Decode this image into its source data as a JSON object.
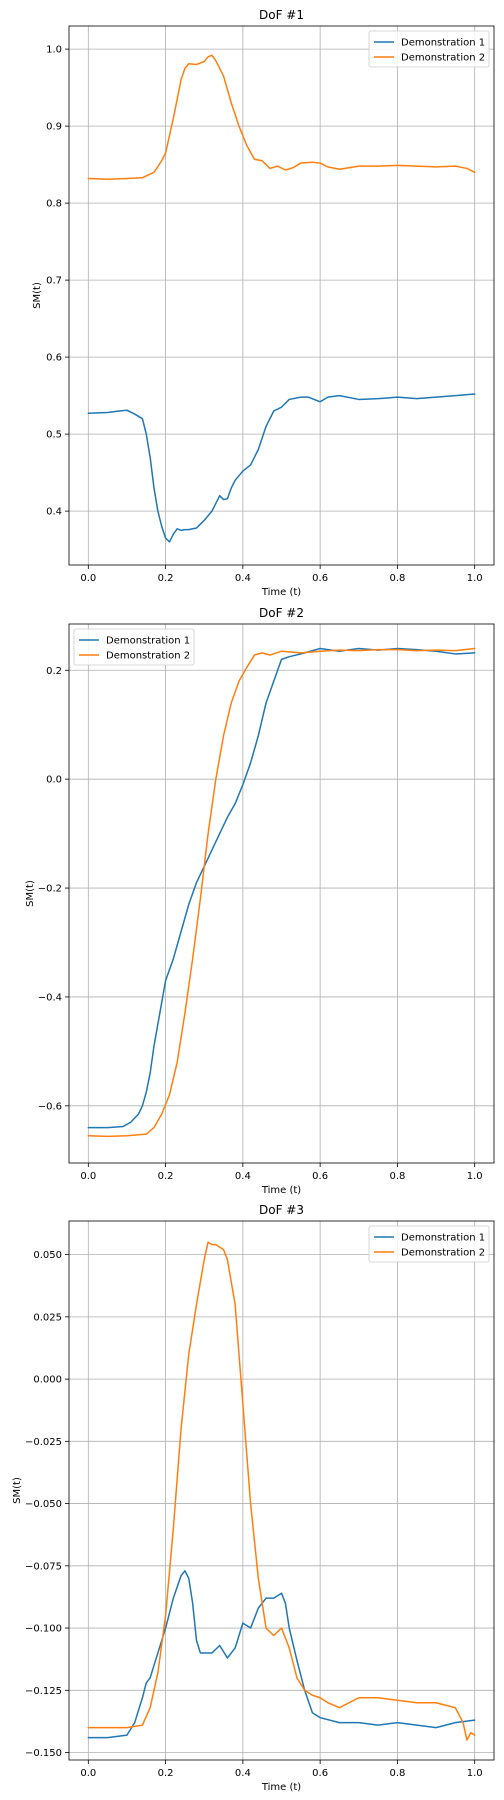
{
  "chart_data": [
    {
      "type": "line",
      "title": "DoF #1",
      "xlabel": "Time (t)",
      "ylabel": "SM(t)",
      "xlim": [
        -0.05,
        1.05
      ],
      "ylim": [
        0.33,
        1.03
      ],
      "xticks": [
        0.0,
        0.2,
        0.4,
        0.6,
        0.8,
        1.0
      ],
      "xtick_labels": [
        "0.0",
        "0.2",
        "0.4",
        "0.6",
        "0.8",
        "1.0"
      ],
      "yticks": [
        0.4,
        0.5,
        0.6,
        0.7,
        0.8,
        0.9,
        1.0
      ],
      "ytick_labels": [
        "0.4",
        "0.5",
        "0.6",
        "0.7",
        "0.8",
        "0.9",
        "1.0"
      ],
      "grid": true,
      "legend_position": "upper-right",
      "series": [
        {
          "name": "Demonstration 1",
          "color": "#1f77b4",
          "x": [
            0.0,
            0.05,
            0.08,
            0.1,
            0.12,
            0.14,
            0.15,
            0.16,
            0.17,
            0.18,
            0.19,
            0.2,
            0.21,
            0.22,
            0.23,
            0.24,
            0.25,
            0.26,
            0.28,
            0.3,
            0.32,
            0.33,
            0.34,
            0.35,
            0.36,
            0.37,
            0.38,
            0.4,
            0.42,
            0.44,
            0.46,
            0.48,
            0.5,
            0.52,
            0.55,
            0.57,
            0.6,
            0.62,
            0.65,
            0.7,
            0.75,
            0.8,
            0.85,
            0.9,
            0.95,
            1.0
          ],
          "y": [
            0.527,
            0.528,
            0.53,
            0.531,
            0.526,
            0.52,
            0.5,
            0.47,
            0.43,
            0.4,
            0.38,
            0.365,
            0.36,
            0.37,
            0.377,
            0.375,
            0.376,
            0.376,
            0.378,
            0.388,
            0.4,
            0.41,
            0.42,
            0.415,
            0.416,
            0.43,
            0.44,
            0.452,
            0.46,
            0.48,
            0.51,
            0.53,
            0.535,
            0.545,
            0.548,
            0.548,
            0.542,
            0.548,
            0.55,
            0.545,
            0.546,
            0.548,
            0.546,
            0.548,
            0.55,
            0.552
          ]
        },
        {
          "name": "Demonstration 2",
          "color": "#ff7f0e",
          "x": [
            0.0,
            0.05,
            0.1,
            0.14,
            0.17,
            0.19,
            0.2,
            0.22,
            0.24,
            0.25,
            0.26,
            0.28,
            0.3,
            0.31,
            0.32,
            0.33,
            0.35,
            0.37,
            0.39,
            0.41,
            0.43,
            0.45,
            0.47,
            0.49,
            0.51,
            0.53,
            0.55,
            0.58,
            0.6,
            0.62,
            0.65,
            0.7,
            0.75,
            0.8,
            0.85,
            0.9,
            0.95,
            0.98,
            1.0
          ],
          "y": [
            0.832,
            0.831,
            0.832,
            0.833,
            0.84,
            0.855,
            0.865,
            0.91,
            0.96,
            0.975,
            0.981,
            0.98,
            0.984,
            0.99,
            0.992,
            0.985,
            0.965,
            0.93,
            0.9,
            0.875,
            0.857,
            0.855,
            0.845,
            0.848,
            0.843,
            0.846,
            0.852,
            0.853,
            0.852,
            0.847,
            0.844,
            0.848,
            0.848,
            0.849,
            0.848,
            0.847,
            0.848,
            0.845,
            0.84
          ]
        }
      ]
    },
    {
      "type": "line",
      "title": "DoF #2",
      "xlabel": "Time (t)",
      "ylabel": "SM(t)",
      "xlim": [
        -0.05,
        1.05
      ],
      "ylim": [
        -0.705,
        0.285
      ],
      "xticks": [
        0.0,
        0.2,
        0.4,
        0.6,
        0.8,
        1.0
      ],
      "xtick_labels": [
        "0.0",
        "0.2",
        "0.4",
        "0.6",
        "0.8",
        "1.0"
      ],
      "yticks": [
        -0.6,
        -0.4,
        -0.2,
        0.0,
        0.2
      ],
      "ytick_labels": [
        "−0.6",
        "−0.4",
        "−0.2",
        "0.0",
        "0.2"
      ],
      "grid": true,
      "legend_position": "upper-left",
      "series": [
        {
          "name": "Demonstration 1",
          "color": "#1f77b4",
          "x": [
            0.0,
            0.05,
            0.09,
            0.11,
            0.13,
            0.14,
            0.15,
            0.16,
            0.17,
            0.18,
            0.19,
            0.2,
            0.22,
            0.24,
            0.26,
            0.28,
            0.3,
            0.32,
            0.34,
            0.36,
            0.38,
            0.4,
            0.42,
            0.44,
            0.46,
            0.48,
            0.5,
            0.52,
            0.55,
            0.6,
            0.65,
            0.7,
            0.75,
            0.8,
            0.85,
            0.9,
            0.95,
            1.0
          ],
          "y": [
            -0.64,
            -0.64,
            -0.638,
            -0.63,
            -0.615,
            -0.6,
            -0.575,
            -0.54,
            -0.49,
            -0.45,
            -0.41,
            -0.37,
            -0.33,
            -0.28,
            -0.23,
            -0.19,
            -0.16,
            -0.13,
            -0.1,
            -0.07,
            -0.045,
            -0.01,
            0.03,
            0.08,
            0.14,
            0.18,
            0.22,
            0.225,
            0.23,
            0.24,
            0.235,
            0.24,
            0.237,
            0.24,
            0.238,
            0.235,
            0.23,
            0.232
          ]
        },
        {
          "name": "Demonstration 2",
          "color": "#ff7f0e",
          "x": [
            0.0,
            0.05,
            0.1,
            0.15,
            0.17,
            0.19,
            0.21,
            0.23,
            0.25,
            0.27,
            0.29,
            0.31,
            0.33,
            0.35,
            0.37,
            0.39,
            0.41,
            0.43,
            0.45,
            0.47,
            0.5,
            0.55,
            0.6,
            0.65,
            0.7,
            0.75,
            0.8,
            0.85,
            0.9,
            0.95,
            1.0
          ],
          "y": [
            -0.655,
            -0.656,
            -0.655,
            -0.652,
            -0.64,
            -0.615,
            -0.58,
            -0.52,
            -0.43,
            -0.33,
            -0.22,
            -0.1,
            0.0,
            0.08,
            0.14,
            0.18,
            0.205,
            0.228,
            0.232,
            0.228,
            0.235,
            0.232,
            0.235,
            0.237,
            0.236,
            0.238,
            0.238,
            0.236,
            0.237,
            0.236,
            0.24
          ]
        }
      ]
    },
    {
      "type": "line",
      "title": "DoF #3",
      "xlabel": "Time (t)",
      "ylabel": "SM(t)",
      "xlim": [
        -0.05,
        1.05
      ],
      "ylim": [
        -0.153,
        0.0635
      ],
      "xticks": [
        0.0,
        0.2,
        0.4,
        0.6,
        0.8,
        1.0
      ],
      "xtick_labels": [
        "0.0",
        "0.2",
        "0.4",
        "0.6",
        "0.8",
        "1.0"
      ],
      "yticks": [
        -0.15,
        -0.125,
        -0.1,
        -0.075,
        -0.05,
        -0.025,
        0.0,
        0.025,
        0.05
      ],
      "ytick_labels": [
        "−0.150",
        "−0.125",
        "−0.100",
        "−0.075",
        "−0.050",
        "−0.025",
        "0.000",
        "0.025",
        "0.050"
      ],
      "grid": true,
      "legend_position": "upper-right",
      "series": [
        {
          "name": "Demonstration 1",
          "color": "#1f77b4",
          "x": [
            0.0,
            0.05,
            0.1,
            0.12,
            0.14,
            0.15,
            0.16,
            0.18,
            0.2,
            0.22,
            0.24,
            0.25,
            0.26,
            0.27,
            0.28,
            0.29,
            0.3,
            0.32,
            0.34,
            0.36,
            0.38,
            0.4,
            0.42,
            0.44,
            0.46,
            0.48,
            0.5,
            0.51,
            0.52,
            0.54,
            0.56,
            0.58,
            0.6,
            0.65,
            0.7,
            0.75,
            0.8,
            0.85,
            0.9,
            0.95,
            1.0
          ],
          "y": [
            -0.144,
            -0.144,
            -0.143,
            -0.138,
            -0.128,
            -0.122,
            -0.12,
            -0.11,
            -0.1,
            -0.088,
            -0.079,
            -0.077,
            -0.08,
            -0.09,
            -0.105,
            -0.11,
            -0.11,
            -0.11,
            -0.107,
            -0.112,
            -0.108,
            -0.098,
            -0.1,
            -0.092,
            -0.088,
            -0.088,
            -0.086,
            -0.09,
            -0.1,
            -0.113,
            -0.125,
            -0.134,
            -0.136,
            -0.138,
            -0.138,
            -0.139,
            -0.138,
            -0.139,
            -0.14,
            -0.138,
            -0.137
          ]
        },
        {
          "name": "Demonstration 2",
          "color": "#ff7f0e",
          "x": [
            0.0,
            0.05,
            0.1,
            0.14,
            0.16,
            0.18,
            0.2,
            0.22,
            0.24,
            0.26,
            0.28,
            0.3,
            0.31,
            0.32,
            0.33,
            0.35,
            0.36,
            0.38,
            0.4,
            0.42,
            0.44,
            0.46,
            0.48,
            0.5,
            0.52,
            0.54,
            0.56,
            0.58,
            0.6,
            0.62,
            0.65,
            0.7,
            0.75,
            0.8,
            0.85,
            0.9,
            0.95,
            0.97,
            0.98,
            0.99,
            1.0
          ],
          "y": [
            -0.14,
            -0.14,
            -0.14,
            -0.139,
            -0.132,
            -0.118,
            -0.095,
            -0.06,
            -0.02,
            0.01,
            0.03,
            0.048,
            0.055,
            0.054,
            0.054,
            0.052,
            0.048,
            0.03,
            -0.01,
            -0.05,
            -0.08,
            -0.1,
            -0.103,
            -0.1,
            -0.108,
            -0.12,
            -0.125,
            -0.127,
            -0.128,
            -0.13,
            -0.132,
            -0.128,
            -0.128,
            -0.129,
            -0.13,
            -0.13,
            -0.132,
            -0.138,
            -0.145,
            -0.142,
            -0.143
          ]
        }
      ]
    }
  ]
}
